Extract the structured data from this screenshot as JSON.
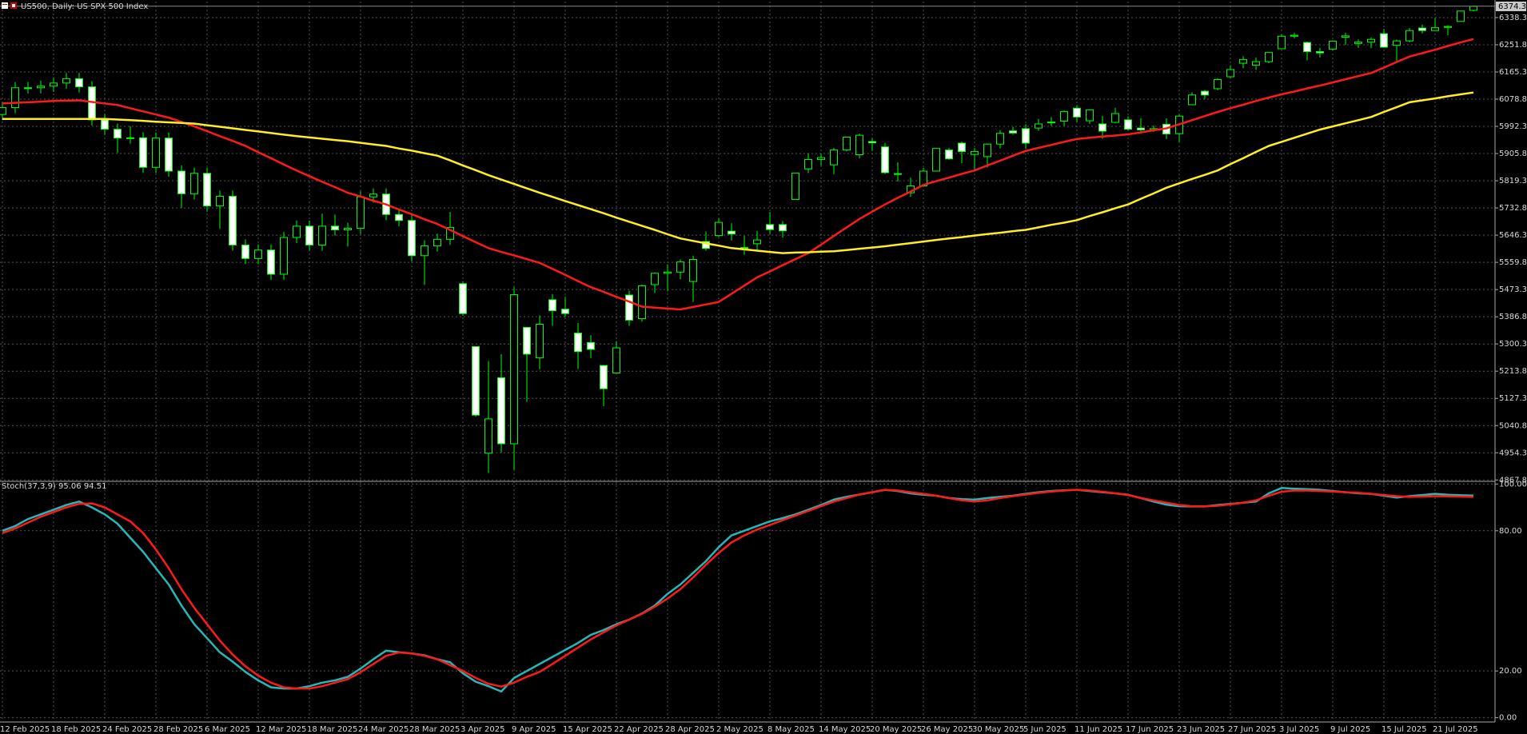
{
  "chart_data": [
    {
      "type": "candlestick",
      "title": "US500, Daily: US SPX 500 Index",
      "categories": [
        "12 Feb 2025",
        null,
        null,
        null,
        "18 Feb 2025",
        null,
        null,
        null,
        "24 Feb 2025",
        null,
        null,
        null,
        "28 Feb 2025",
        null,
        null,
        null,
        "6 Mar 2025",
        null,
        null,
        null,
        "12 Mar 2025",
        null,
        null,
        null,
        "18 Mar 2025",
        null,
        null,
        null,
        "24 Mar 2025",
        null,
        null,
        null,
        "28 Mar 2025",
        null,
        null,
        null,
        "3 Apr 2025",
        null,
        null,
        null,
        "9 Apr 2025",
        null,
        null,
        null,
        "15 Apr 2025",
        null,
        null,
        null,
        "22 Apr 2025",
        null,
        null,
        null,
        "28 Apr 2025",
        null,
        null,
        null,
        "2 May 2025",
        null,
        null,
        null,
        "8 May 2025",
        null,
        null,
        null,
        "14 May 2025",
        null,
        null,
        null,
        "20 May 2025",
        null,
        null,
        null,
        "26 May 2025",
        null,
        null,
        null,
        "30 May 2025",
        null,
        null,
        null,
        "5 Jun 2025",
        null,
        null,
        null,
        "11 Jun 2025",
        null,
        null,
        null,
        "17 Jun 2025",
        null,
        null,
        null,
        "23 Jun 2025",
        null,
        null,
        null,
        "27 Jun 2025",
        null,
        null,
        null,
        "3 Jul 2025",
        null,
        null,
        null,
        "9 Jul 2025",
        null,
        null,
        null,
        "15 Jul 2025",
        null,
        null,
        null,
        "21 Jul 2025",
        null,
        null,
        null
      ],
      "open": [
        6030,
        6052,
        6115,
        6115,
        6120,
        6130,
        6144,
        6118,
        6013,
        5983,
        5955,
        5956,
        5862,
        5955,
        5850,
        5778,
        5843,
        5739,
        5770,
        5615,
        5572,
        5599,
        5522,
        5639,
        5675,
        5615,
        5675,
        5663,
        5668,
        5768,
        5777,
        5712,
        5693,
        5581,
        5612,
        5633,
        5492,
        5292,
        4953,
        5193,
        4983,
        5353,
        5256,
        5441,
        5411,
        5335,
        5305,
        5232,
        5208,
        5456,
        5381,
        5489,
        5525,
        5529,
        5499,
        5626,
        5645,
        5659,
        5605,
        5619,
        5680,
        5680,
        5760,
        5857,
        5887,
        5870,
        5917,
        5902,
        5944,
        5927,
        5841,
        5781,
        5803,
        5850,
        5917,
        5939,
        5903,
        5896,
        5936,
        5978,
        5985,
        5987,
        6004,
        6009,
        6050,
        6010,
        6000,
        6005,
        6013,
        5987,
        5981,
        5999,
        5969,
        6061,
        6104,
        6112,
        6150,
        6193,
        6187,
        6198,
        6239,
        6279,
        6259,
        6230,
        6238,
        6276,
        6256,
        6260,
        6287,
        6250,
        6264,
        6305,
        6297,
        6307,
        6326,
        6361
      ],
      "high": [
        6070,
        6133,
        6133,
        6138,
        6148,
        6162,
        6162,
        6136,
        6031,
        6001,
        5993,
        5974,
        5973,
        5973,
        5868,
        5861,
        5861,
        5788,
        5788,
        5633,
        5617,
        5617,
        5657,
        5693,
        5693,
        5715,
        5712,
        5686,
        5786,
        5795,
        5795,
        5730,
        5711,
        5630,
        5651,
        5720,
        5500,
        5292,
        5246,
        5268,
        5481,
        5353,
        5391,
        5459,
        5450,
        5367,
        5328,
        5232,
        5309,
        5470,
        5490,
        5528,
        5553,
        5569,
        5581,
        5658,
        5700,
        5684,
        5644,
        5660,
        5720,
        5691,
        5845,
        5907,
        5906,
        5924,
        5959,
        5969,
        5954,
        5939,
        5878,
        5829,
        5860,
        5922,
        5924,
        5944,
        5923,
        5938,
        5981,
        5990,
        5999,
        6016,
        6022,
        6043,
        6060,
        6047,
        6026,
        6051,
        6024,
        6018,
        5995,
        6018,
        6030,
        6101,
        6108,
        6146,
        6187,
        6215,
        6211,
        6228,
        6285,
        6290,
        6262,
        6242,
        6265,
        6290,
        6269,
        6275,
        6302,
        6268,
        6305,
        6316,
        6336,
        6314,
        6360,
        6376
      ],
      "low": [
        6012,
        6034,
        6097,
        6097,
        6102,
        6112,
        6100,
        5995,
        5965,
        5908,
        5937,
        5844,
        5844,
        5832,
        5733,
        5760,
        5721,
        5667,
        5597,
        5554,
        5554,
        5504,
        5504,
        5621,
        5597,
        5597,
        5645,
        5610,
        5650,
        5750,
        5694,
        5675,
        5563,
        5488,
        5594,
        5615,
        5390,
        5069,
        4890,
        4955,
        4900,
        5116,
        5220,
        5358,
        5386,
        5221,
        5255,
        5102,
        5208,
        5358,
        5371,
        5462,
        5468,
        5506,
        5434,
        5597,
        5640,
        5629,
        5584,
        5597,
        5651,
        5639,
        5759,
        5844,
        5867,
        5840,
        5913,
        5890,
        5914,
        5841,
        5817,
        5768,
        5800,
        5850,
        5886,
        5875,
        5850,
        5861,
        5922,
        5966,
        5921,
        5978,
        5994,
        5994,
        6006,
        6000,
        5953,
        6003,
        5979,
        5971,
        5975,
        5952,
        5943,
        6060,
        6080,
        6107,
        6146,
        6177,
        6172,
        6193,
        6239,
        6272,
        6202,
        6211,
        6233,
        6251,
        6242,
        6241,
        6243,
        6201,
        6260,
        6288,
        6297,
        6282,
        6326,
        6358
      ],
      "close": [
        6052,
        6115,
        6115,
        6120,
        6130,
        6144,
        6118,
        6013,
        5983,
        5955,
        5956,
        5862,
        5955,
        5850,
        5778,
        5843,
        5739,
        5770,
        5615,
        5572,
        5599,
        5522,
        5639,
        5675,
        5615,
        5675,
        5663,
        5668,
        5768,
        5777,
        5712,
        5693,
        5581,
        5612,
        5633,
        5671,
        5397,
        5074,
        5062,
        4983,
        5457,
        5268,
        5363,
        5406,
        5397,
        5276,
        5283,
        5158,
        5288,
        5376,
        5485,
        5525,
        5529,
        5561,
        5569,
        5604,
        5687,
        5650,
        5607,
        5631,
        5664,
        5660,
        5844,
        5887,
        5893,
        5917,
        5958,
        5964,
        5940,
        5845,
        5842,
        5803,
        5850,
        5922,
        5889,
        5912,
        5912,
        5936,
        5970,
        5971,
        5939,
        6000,
        6006,
        6039,
        6022,
        6045,
        5977,
        6033,
        5983,
        5981,
        5985,
        5968,
        6025,
        6092,
        6092,
        6141,
        6173,
        6205,
        6198,
        6227,
        6279,
        6282,
        6230,
        6226,
        6263,
        6280,
        6260,
        6269,
        6244,
        6264,
        6297,
        6297,
        6306,
        6310,
        6359,
        6374
      ],
      "color": "#00ff00",
      "up_color": "#000000",
      "down_color": "#ffffff",
      "overlays": [
        {
          "color": "#ff1a1a",
          "values": [
            6065,
            6067,
            6069,
            6071,
            6073,
            6074,
            6075,
            6070,
            6065,
            6060,
            6050,
            6040,
            6030,
            6020,
            6006,
            5992,
            5977,
            5961,
            5946,
            5930,
            5910,
            5891,
            5871,
            5852,
            5834,
            5816,
            5799,
            5781,
            5769,
            5756,
            5744,
            5728,
            5713,
            5697,
            5682,
            5663,
            5643,
            5624,
            5605,
            5593,
            5582,
            5570,
            5558,
            5539,
            5520,
            5500,
            5481,
            5466,
            5450,
            5435,
            5419,
            5416,
            5413,
            5410,
            5418,
            5426,
            5434,
            5460,
            5486,
            5512,
            5531,
            5551,
            5570,
            5589,
            5616,
            5644,
            5671,
            5698,
            5721,
            5744,
            5765,
            5785,
            5806,
            5818,
            5829,
            5841,
            5852,
            5868,
            5883,
            5899,
            5914,
            5924,
            5933,
            5943,
            5952,
            5956,
            5960,
            5963,
            5967,
            5973,
            5980,
            5986,
            5999,
            6012,
            6025,
            6038,
            6050,
            6061,
            6073,
            6084,
            6094,
            6103,
            6113,
            6122,
            6132,
            6142,
            6152,
            6162,
            6179,
            6197,
            6214,
            6225,
            6236,
            6248,
            6259,
            6270
          ]
        },
        {
          "color": "#ffee22",
          "values": [
            6016,
            6016,
            6016,
            6016,
            6016,
            6016,
            6016,
            6016,
            6016,
            6014,
            6012,
            6010,
            6007,
            6005,
            6003,
            6001,
            5996,
            5991,
            5986,
            5981,
            5976,
            5971,
            5966,
            5961,
            5957,
            5953,
            5949,
            5945,
            5940,
            5935,
            5930,
            5922,
            5915,
            5907,
            5899,
            5884,
            5868,
            5853,
            5837,
            5823,
            5809,
            5795,
            5781,
            5768,
            5755,
            5742,
            5729,
            5716,
            5702,
            5689,
            5676,
            5663,
            5649,
            5636,
            5628,
            5620,
            5613,
            5605,
            5601,
            5597,
            5593,
            5589,
            5591,
            5592,
            5594,
            5595,
            5599,
            5603,
            5607,
            5611,
            5616,
            5621,
            5626,
            5631,
            5636,
            5640,
            5645,
            5650,
            5654,
            5659,
            5663,
            5671,
            5679,
            5686,
            5694,
            5707,
            5719,
            5732,
            5744,
            5762,
            5779,
            5797,
            5811,
            5825,
            5838,
            5852,
            5872,
            5891,
            5911,
            5930,
            5943,
            5956,
            5969,
            5982,
            5992,
            6002,
            6012,
            6022,
            6038,
            6053,
            6069,
            6075,
            6081,
            6088,
            6094,
            6100
          ]
        }
      ],
      "last_price": 6374.3,
      "ylim": [
        4866,
        6389
      ],
      "yticks": [
        6338.3,
        6251.8,
        6165.3,
        6078.8,
        5992.3,
        5905.8,
        5819.3,
        5732.8,
        5646.3,
        5559.8,
        5473.3,
        5386.8,
        5300.3,
        5213.8,
        5127.3,
        5040.8,
        4954.3,
        4867.8
      ],
      "grid": true
    },
    {
      "type": "line",
      "title": "Stoch(37,3,9) 95.06 94.51",
      "series": [
        {
          "color": "#26b8b8",
          "values": [
            80,
            82,
            85,
            87,
            89,
            91,
            92.5,
            90,
            87,
            83,
            77,
            71,
            64,
            57,
            48,
            40,
            34,
            28,
            24,
            19.6,
            16,
            13,
            12.5,
            12.5,
            13.5,
            15,
            16,
            17.5,
            21,
            25,
            28.7,
            28,
            27.5,
            26.7,
            25,
            23.7,
            19,
            15.4,
            13.5,
            11.2,
            17,
            20,
            23,
            26,
            29,
            32,
            35.4,
            37.5,
            40,
            42,
            44.6,
            48,
            53,
            57,
            62,
            67,
            73,
            78,
            80,
            82,
            84,
            85.4,
            87,
            89,
            91,
            93.3,
            94.5,
            95.5,
            96.5,
            97.5,
            97,
            96,
            95.4,
            95,
            94,
            93.5,
            93.3,
            94,
            94.5,
            95,
            95.8,
            96.5,
            97,
            97.3,
            97.5,
            97,
            96.5,
            96,
            95.4,
            94,
            92.5,
            91.2,
            90.5,
            90.4,
            90.4,
            91,
            91.5,
            92,
            92.5,
            96,
            98.3,
            98,
            97.8,
            97.5,
            97,
            96.5,
            96,
            95.8,
            95,
            94.2,
            94.8,
            95.3,
            95.8,
            95.4,
            95.2,
            95.06
          ]
        },
        {
          "color": "#ff1a1a",
          "values": [
            79,
            81,
            83.5,
            86,
            88,
            90,
            91.5,
            91.7,
            90,
            87,
            84,
            79,
            72,
            64,
            55,
            47,
            40,
            33,
            27,
            22,
            18,
            15,
            13,
            12.5,
            12.5,
            13.5,
            15,
            16.5,
            19.5,
            23,
            26.5,
            27.9,
            27.5,
            26.5,
            25,
            22.5,
            20,
            17,
            14.5,
            13.3,
            15,
            17.5,
            19.6,
            23,
            26.5,
            30,
            33.5,
            36.5,
            39.5,
            42,
            44.5,
            47.5,
            51,
            55,
            60,
            65.5,
            70.5,
            75,
            78,
            80.5,
            82.5,
            84.5,
            86.5,
            88.5,
            90.5,
            92.5,
            94,
            95.5,
            96.5,
            97.5,
            97.2,
            96.5,
            95.8,
            95,
            94,
            93,
            92.5,
            93,
            94,
            94.8,
            95.5,
            96.2,
            96.8,
            97.2,
            97.5,
            97.2,
            96.7,
            96,
            95.3,
            94,
            93,
            92,
            91,
            90.5,
            90.4,
            90.7,
            91.3,
            92,
            93,
            95,
            96.7,
            97.2,
            97.2,
            97,
            96.8,
            96.5,
            96.2,
            95.8,
            95.3,
            94.8,
            94.5,
            94.6,
            94.8,
            94.7,
            94.6,
            94.51
          ]
        }
      ],
      "ylim": [
        -1.5,
        100.8
      ],
      "yticks": [
        {
          "value": 100,
          "label": "100.00"
        },
        {
          "value": 80,
          "label": "80.00"
        },
        {
          "value": 20,
          "label": "20.00"
        },
        {
          "value": 0,
          "label": "0.00"
        }
      ],
      "grid": true
    }
  ]
}
